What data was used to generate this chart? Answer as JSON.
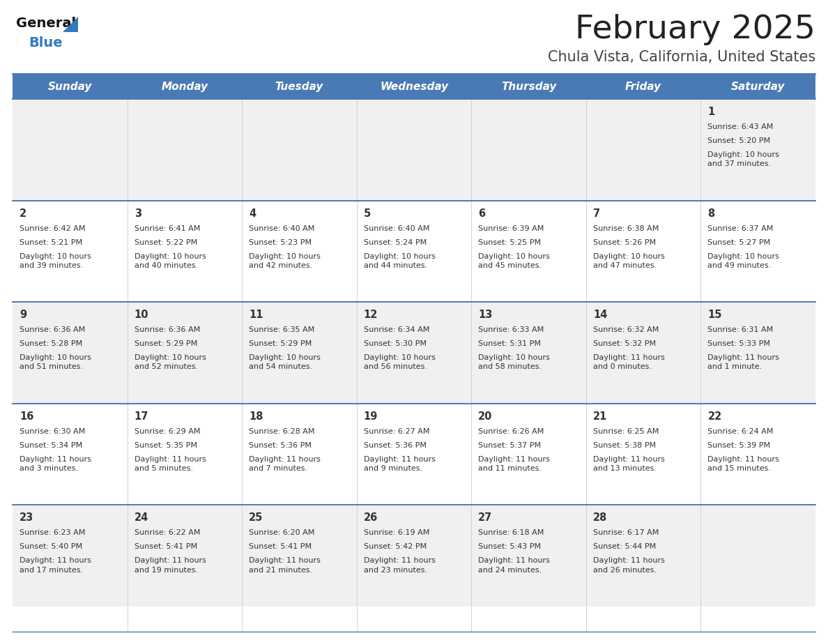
{
  "title": "February 2025",
  "subtitle": "Chula Vista, California, United States",
  "header_bg": "#4a7ab5",
  "header_text_color": "#ffffff",
  "day_names": [
    "Sunday",
    "Monday",
    "Tuesday",
    "Wednesday",
    "Thursday",
    "Friday",
    "Saturday"
  ],
  "cell_bg_odd": "#f0f0f0",
  "cell_bg_even": "#ffffff",
  "divider_color": "#4a7ab5",
  "text_color": "#333333",
  "day_num_color": "#333333",
  "logo_general_color": "#1a1a1a",
  "logo_blue_color": "#2e7bbf",
  "calendar": [
    [
      null,
      null,
      null,
      null,
      null,
      null,
      {
        "day": 1,
        "sunrise": "6:43 AM",
        "sunset": "5:20 PM",
        "daylight": "10 hours\nand 37 minutes."
      }
    ],
    [
      {
        "day": 2,
        "sunrise": "6:42 AM",
        "sunset": "5:21 PM",
        "daylight": "10 hours\nand 39 minutes."
      },
      {
        "day": 3,
        "sunrise": "6:41 AM",
        "sunset": "5:22 PM",
        "daylight": "10 hours\nand 40 minutes."
      },
      {
        "day": 4,
        "sunrise": "6:40 AM",
        "sunset": "5:23 PM",
        "daylight": "10 hours\nand 42 minutes."
      },
      {
        "day": 5,
        "sunrise": "6:40 AM",
        "sunset": "5:24 PM",
        "daylight": "10 hours\nand 44 minutes."
      },
      {
        "day": 6,
        "sunrise": "6:39 AM",
        "sunset": "5:25 PM",
        "daylight": "10 hours\nand 45 minutes."
      },
      {
        "day": 7,
        "sunrise": "6:38 AM",
        "sunset": "5:26 PM",
        "daylight": "10 hours\nand 47 minutes."
      },
      {
        "day": 8,
        "sunrise": "6:37 AM",
        "sunset": "5:27 PM",
        "daylight": "10 hours\nand 49 minutes."
      }
    ],
    [
      {
        "day": 9,
        "sunrise": "6:36 AM",
        "sunset": "5:28 PM",
        "daylight": "10 hours\nand 51 minutes."
      },
      {
        "day": 10,
        "sunrise": "6:36 AM",
        "sunset": "5:29 PM",
        "daylight": "10 hours\nand 52 minutes."
      },
      {
        "day": 11,
        "sunrise": "6:35 AM",
        "sunset": "5:29 PM",
        "daylight": "10 hours\nand 54 minutes."
      },
      {
        "day": 12,
        "sunrise": "6:34 AM",
        "sunset": "5:30 PM",
        "daylight": "10 hours\nand 56 minutes."
      },
      {
        "day": 13,
        "sunrise": "6:33 AM",
        "sunset": "5:31 PM",
        "daylight": "10 hours\nand 58 minutes."
      },
      {
        "day": 14,
        "sunrise": "6:32 AM",
        "sunset": "5:32 PM",
        "daylight": "11 hours\nand 0 minutes."
      },
      {
        "day": 15,
        "sunrise": "6:31 AM",
        "sunset": "5:33 PM",
        "daylight": "11 hours\nand 1 minute."
      }
    ],
    [
      {
        "day": 16,
        "sunrise": "6:30 AM",
        "sunset": "5:34 PM",
        "daylight": "11 hours\nand 3 minutes."
      },
      {
        "day": 17,
        "sunrise": "6:29 AM",
        "sunset": "5:35 PM",
        "daylight": "11 hours\nand 5 minutes."
      },
      {
        "day": 18,
        "sunrise": "6:28 AM",
        "sunset": "5:36 PM",
        "daylight": "11 hours\nand 7 minutes."
      },
      {
        "day": 19,
        "sunrise": "6:27 AM",
        "sunset": "5:36 PM",
        "daylight": "11 hours\nand 9 minutes."
      },
      {
        "day": 20,
        "sunrise": "6:26 AM",
        "sunset": "5:37 PM",
        "daylight": "11 hours\nand 11 minutes."
      },
      {
        "day": 21,
        "sunrise": "6:25 AM",
        "sunset": "5:38 PM",
        "daylight": "11 hours\nand 13 minutes."
      },
      {
        "day": 22,
        "sunrise": "6:24 AM",
        "sunset": "5:39 PM",
        "daylight": "11 hours\nand 15 minutes."
      }
    ],
    [
      {
        "day": 23,
        "sunrise": "6:23 AM",
        "sunset": "5:40 PM",
        "daylight": "11 hours\nand 17 minutes."
      },
      {
        "day": 24,
        "sunrise": "6:22 AM",
        "sunset": "5:41 PM",
        "daylight": "11 hours\nand 19 minutes."
      },
      {
        "day": 25,
        "sunrise": "6:20 AM",
        "sunset": "5:41 PM",
        "daylight": "11 hours\nand 21 minutes."
      },
      {
        "day": 26,
        "sunrise": "6:19 AM",
        "sunset": "5:42 PM",
        "daylight": "11 hours\nand 23 minutes."
      },
      {
        "day": 27,
        "sunrise": "6:18 AM",
        "sunset": "5:43 PM",
        "daylight": "11 hours\nand 24 minutes."
      },
      {
        "day": 28,
        "sunrise": "6:17 AM",
        "sunset": "5:44 PM",
        "daylight": "11 hours\nand 26 minutes."
      },
      null
    ]
  ]
}
